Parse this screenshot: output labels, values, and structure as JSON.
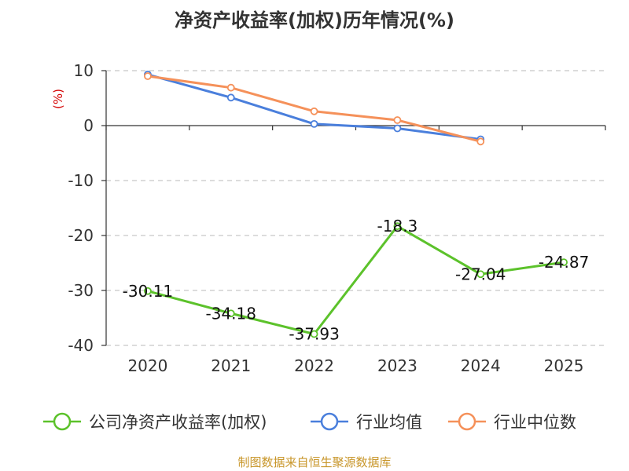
{
  "chart_data": {
    "type": "line",
    "title": "净资产收益率(加权)历年情况(%)",
    "ylabel": "(%)",
    "xlabel": "",
    "categories": [
      "2020",
      "2021",
      "2022",
      "2023",
      "2024",
      "2025"
    ],
    "ylim": [
      -40,
      10
    ],
    "yticks": [
      10,
      0,
      -10,
      -20,
      -30,
      -40
    ],
    "grid": true,
    "legend_position": "bottom",
    "series": [
      {
        "name": "公司净资产收益率(加权)",
        "color": "#5cc22b",
        "values": [
          -30.11,
          -34.18,
          -37.93,
          -18.3,
          -27.04,
          -24.87
        ],
        "labels": [
          "-30.11",
          "-34.18",
          "-37.93",
          "-18.3",
          "-27.04",
          "-24.87"
        ]
      },
      {
        "name": "行业均值",
        "color": "#4a7fdc",
        "values": [
          9.3,
          5.1,
          0.3,
          -0.5,
          -2.5,
          null
        ]
      },
      {
        "name": "行业中位数",
        "color": "#f5915a",
        "values": [
          9.0,
          6.9,
          2.6,
          1.0,
          -2.9,
          null
        ]
      }
    ]
  },
  "source": "制图数据来自恒生聚源数据库"
}
